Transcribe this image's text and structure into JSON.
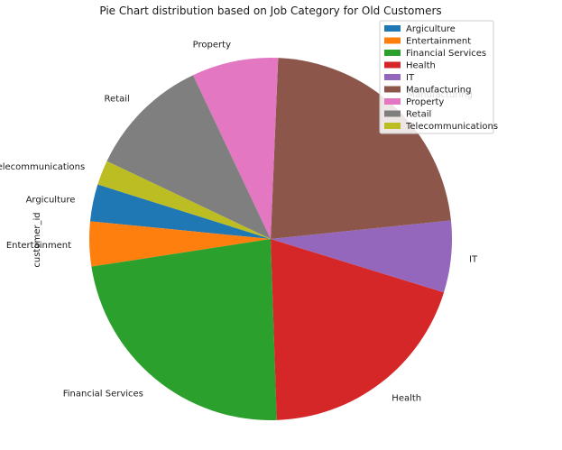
{
  "chart_data": {
    "type": "pie",
    "title": "Pie Chart distribution based on Job Category for Old Customers",
    "ylabel": "customer_id",
    "legend_position": "top-right",
    "slices": [
      {
        "label": "Argiculture",
        "value": 3.3,
        "color": "#1f77b4"
      },
      {
        "label": "Entertainment",
        "value": 4.0,
        "color": "#ff7f0e"
      },
      {
        "label": "Financial Services",
        "value": 23.1,
        "color": "#2ca02c"
      },
      {
        "label": "Health",
        "value": 19.7,
        "color": "#d62728"
      },
      {
        "label": "IT",
        "value": 6.4,
        "color": "#9467bd"
      },
      {
        "label": "Manufacturing",
        "value": 22.7,
        "color": "#8c564b"
      },
      {
        "label": "Property",
        "value": 7.7,
        "color": "#e377c2"
      },
      {
        "label": "Retail",
        "value": 10.9,
        "color": "#7f7f7f"
      },
      {
        "label": "Telecommunications",
        "value": 2.2,
        "color": "#bcbd22"
      }
    ]
  }
}
